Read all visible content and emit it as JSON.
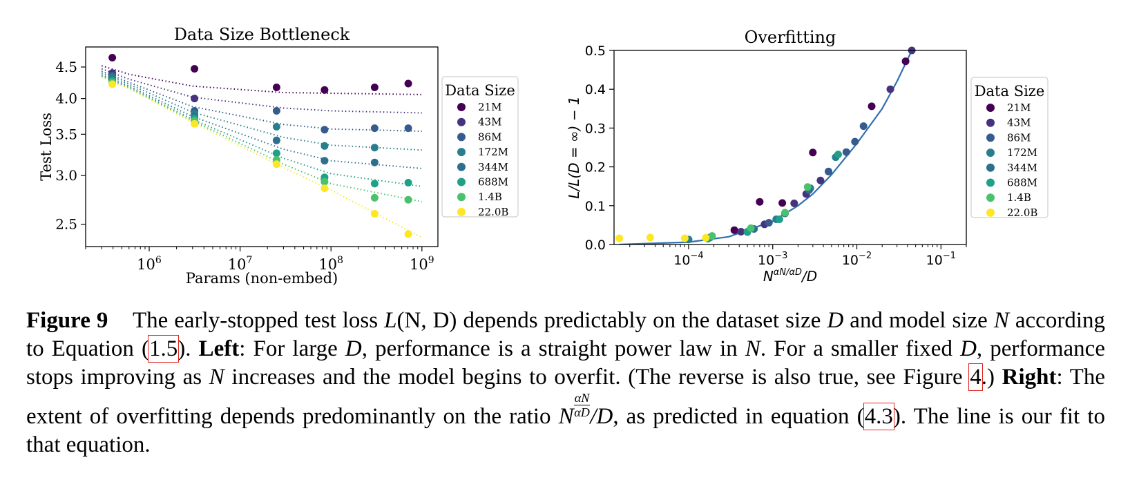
{
  "chart_data": [
    {
      "type": "scatter",
      "title": "Data Size Bottleneck",
      "xlabel": "Params (non-embed)",
      "ylabel": "Test Loss",
      "xscale": "log",
      "yscale": "log",
      "xlim": [
        200000,
        1500000000
      ],
      "ylim": [
        2.3,
        4.85
      ],
      "xticks": [
        {
          "value": 1000000,
          "base": "10",
          "exp": "6"
        },
        {
          "value": 10000000,
          "base": "10",
          "exp": "7"
        },
        {
          "value": 100000000,
          "base": "10",
          "exp": "8"
        },
        {
          "value": 1000000000,
          "base": "10",
          "exp": "9"
        }
      ],
      "yticks": [
        {
          "value": 2.5,
          "label": "2.5"
        },
        {
          "value": 3.0,
          "label": "3.0"
        },
        {
          "value": 3.5,
          "label": "3.5"
        },
        {
          "value": 4.0,
          "label": "4.0"
        },
        {
          "value": 4.5,
          "label": "4.5"
        }
      ],
      "grid": false,
      "legend": {
        "title": "Data Size",
        "placement": "right, outside"
      },
      "x": [
        393000,
        3150000,
        25200000,
        85000000,
        302000000,
        708000000
      ],
      "series": [
        {
          "name": "21M",
          "color": "#440154",
          "values": [
            4.66,
            4.47,
            4.17,
            4.13,
            4.17,
            4.23
          ],
          "fit": [
            [
              300000,
              4.52
            ],
            [
              600000,
              4.38
            ],
            [
              3000000,
              4.19
            ],
            [
              30000000,
              4.09
            ],
            [
              100000000,
              4.08
            ],
            [
              1000000000,
              4.06
            ]
          ]
        },
        {
          "name": "43M",
          "color": "#46327e",
          "values": [
            4.4,
            4.0,
            null,
            null,
            null,
            null
          ],
          "fit": [
            [
              300000,
              4.47
            ],
            [
              600000,
              4.3
            ],
            [
              3000000,
              4.02
            ],
            [
              30000000,
              3.86
            ],
            [
              100000000,
              3.82
            ],
            [
              1000000000,
              3.79
            ]
          ]
        },
        {
          "name": "86M",
          "color": "#365c8d",
          "values": [
            4.36,
            3.82,
            3.82,
            3.56,
            3.58,
            3.58
          ],
          "fit": [
            [
              300000,
              4.43
            ],
            [
              600000,
              4.25
            ],
            [
              3000000,
              3.88
            ],
            [
              30000000,
              3.63
            ],
            [
              100000000,
              3.57
            ],
            [
              1000000000,
              3.54
            ]
          ]
        },
        {
          "name": "172M",
          "color": "#277f8e",
          "values": [
            4.33,
            3.78,
            3.6,
            3.35,
            3.33,
            null
          ],
          "fit": [
            [
              300000,
              4.4
            ],
            [
              600000,
              4.22
            ],
            [
              3000000,
              3.8
            ],
            [
              30000000,
              3.46
            ],
            [
              100000000,
              3.36
            ],
            [
              1000000000,
              3.3
            ]
          ]
        },
        {
          "name": "344M",
          "color": "#2e6f8e",
          "values": [
            4.3,
            3.74,
            3.42,
            3.17,
            3.15,
            null
          ],
          "fit": [
            [
              300000,
              4.37
            ],
            [
              600000,
              4.19
            ],
            [
              3000000,
              3.74
            ],
            [
              30000000,
              3.31
            ],
            [
              100000000,
              3.17
            ],
            [
              1000000000,
              3.08
            ]
          ]
        },
        {
          "name": "688M",
          "color": "#1fa187",
          "values": [
            4.28,
            3.71,
            3.26,
            2.98,
            2.91,
            2.92
          ],
          "fit": [
            [
              300000,
              4.35
            ],
            [
              600000,
              4.17
            ],
            [
              3000000,
              3.7
            ],
            [
              30000000,
              3.2
            ],
            [
              100000000,
              3.02
            ],
            [
              1000000000,
              2.88
            ]
          ]
        },
        {
          "name": "1.4B",
          "color": "#4ac16d",
          "values": [
            4.25,
            3.68,
            3.18,
            2.93,
            2.76,
            2.74
          ],
          "fit": [
            [
              300000,
              4.34
            ],
            [
              600000,
              4.16
            ],
            [
              3000000,
              3.68
            ],
            [
              30000000,
              3.13
            ],
            [
              100000000,
              2.91
            ],
            [
              1000000000,
              2.72
            ]
          ]
        },
        {
          "name": "22.0B",
          "color": "#fde725",
          "values": [
            4.22,
            3.64,
            3.13,
            2.86,
            2.6,
            2.41
          ],
          "fit": [
            [
              300000,
              4.33
            ],
            [
              600000,
              4.15
            ],
            [
              3000000,
              3.66
            ],
            [
              30000000,
              3.09
            ],
            [
              100000000,
              2.84
            ],
            [
              1000000000,
              2.38
            ]
          ]
        }
      ]
    },
    {
      "type": "scatter",
      "title": "Overfitting",
      "xlabel_parts": {
        "base": "N",
        "sup": "αN/αD",
        "rest": "/D"
      },
      "ylabel": "L/L(D = ∞) − 1",
      "xscale": "log",
      "xlim": [
        1.3e-05,
        0.2
      ],
      "ylim": [
        0.0,
        0.5
      ],
      "xticks": [
        {
          "value": 0.0001,
          "base": "10",
          "exp": "−4"
        },
        {
          "value": 0.001,
          "base": "10",
          "exp": "−3"
        },
        {
          "value": 0.01,
          "base": "10",
          "exp": "−2"
        },
        {
          "value": 0.1,
          "base": "10",
          "exp": "−1"
        }
      ],
      "yticks": [
        {
          "value": 0.0,
          "label": "0.0"
        },
        {
          "value": 0.1,
          "label": "0.1"
        },
        {
          "value": 0.2,
          "label": "0.2"
        },
        {
          "value": 0.3,
          "label": "0.3"
        },
        {
          "value": 0.4,
          "label": "0.4"
        },
        {
          "value": 0.5,
          "label": "0.5"
        }
      ],
      "grid": false,
      "legend": {
        "title": "Data Size",
        "placement": "right, outside"
      },
      "fit_color": "#2f6fb0",
      "fit_curve": [
        [
          1.5e-05,
          0.0
        ],
        [
          0.0001,
          0.006
        ],
        [
          0.0003,
          0.02
        ],
        [
          0.001,
          0.06
        ],
        [
          0.002,
          0.1
        ],
        [
          0.003,
          0.13
        ],
        [
          0.005,
          0.18
        ],
        [
          0.01,
          0.26
        ],
        [
          0.02,
          0.35
        ],
        [
          0.03,
          0.42
        ],
        [
          0.045,
          0.5
        ]
      ],
      "series": [
        {
          "name": "21M",
          "color": "#440154",
          "points": [
            [
              0.00035,
              0.037
            ],
            [
              0.0007,
              0.11
            ],
            [
              0.0013,
              0.107
            ],
            [
              0.003,
              0.237
            ],
            [
              0.015,
              0.356
            ],
            [
              0.038,
              0.472
            ]
          ]
        },
        {
          "name": "43M",
          "color": "#46327e",
          "points": [
            [
              0.00042,
              0.033
            ],
            [
              0.0008,
              0.052
            ],
            [
              0.0018,
              0.106
            ],
            [
              0.0025,
              0.13
            ],
            [
              0.0037,
              0.165
            ],
            [
              0.025,
              0.4
            ],
            [
              0.045,
              0.5
            ]
          ]
        },
        {
          "name": "86M",
          "color": "#365c8d",
          "points": [
            [
              0.0009,
              0.056
            ],
            [
              0.0046,
              0.188
            ],
            [
              0.0075,
              0.238
            ],
            [
              0.0095,
              0.265
            ],
            [
              0.012,
              0.305
            ]
          ]
        },
        {
          "name": "172M",
          "color": "#277f8e",
          "points": [
            [
              0.0001,
              0.013
            ],
            [
              0.0005,
              0.032
            ],
            [
              0.0011,
              0.065
            ],
            [
              0.0028,
              0.145
            ],
            [
              0.0056,
              0.225
            ]
          ]
        },
        {
          "name": "344M",
          "color": "#2e6f8e",
          "points": [
            [
              0.00018,
              0.018
            ],
            [
              0.0006,
              0.04
            ],
            [
              0.0014,
              0.08
            ],
            [
              0.0027,
              0.14
            ]
          ]
        },
        {
          "name": "688M",
          "color": "#1fa187",
          "points": [
            [
              0.00017,
              0.015
            ],
            [
              0.0005,
              0.033
            ],
            [
              0.0012,
              0.065
            ],
            [
              0.006,
              0.232
            ]
          ]
        },
        {
          "name": "1.4B",
          "color": "#4ac16d",
          "points": [
            [
              0.00019,
              0.022
            ],
            [
              0.00055,
              0.042
            ],
            [
              0.0014,
              0.082
            ],
            [
              0.0026,
              0.148
            ]
          ]
        },
        {
          "name": "22.0B",
          "color": "#fde725",
          "points": [
            [
              1.5e-05,
              0.016
            ],
            [
              3.5e-05,
              0.018
            ],
            [
              9e-05,
              0.016
            ],
            [
              0.00016,
              0.017
            ]
          ]
        }
      ]
    }
  ],
  "caption": {
    "label": "Figure 9",
    "p1": "The early-stopped test loss ",
    "m_L": "L",
    "m_args": "(N, D)",
    "p2": " depends predictably on the dataset size ",
    "m_D1": "D",
    "p3": " and model size ",
    "m_N1": "N",
    "p4": " according to Equation (",
    "ref1": "1.5",
    "p5": "). ",
    "left": "Left",
    "p6": ": For large ",
    "m_D2": "D",
    "p7": ", performance is a straight power law in ",
    "m_N2": "N",
    "p8": ". For a smaller fixed ",
    "m_D3": "D",
    "p9": ", performance stops improving as ",
    "m_N3": "N",
    "p10": " increases and the model begins to overfit. (The reverse is also true, see Figure ",
    "ref2": "4",
    "p11": ".) ",
    "right": "Right",
    "p12": ": The extent of overfitting depends predominantly on the ratio ",
    "m_N4": "N",
    "frac_num": "αN",
    "frac_den": "αD",
    "m_ratio": "/D",
    "p13": ", as predicted in equation (",
    "ref3": "4.3",
    "p14": "). The line is our fit to that equation."
  }
}
